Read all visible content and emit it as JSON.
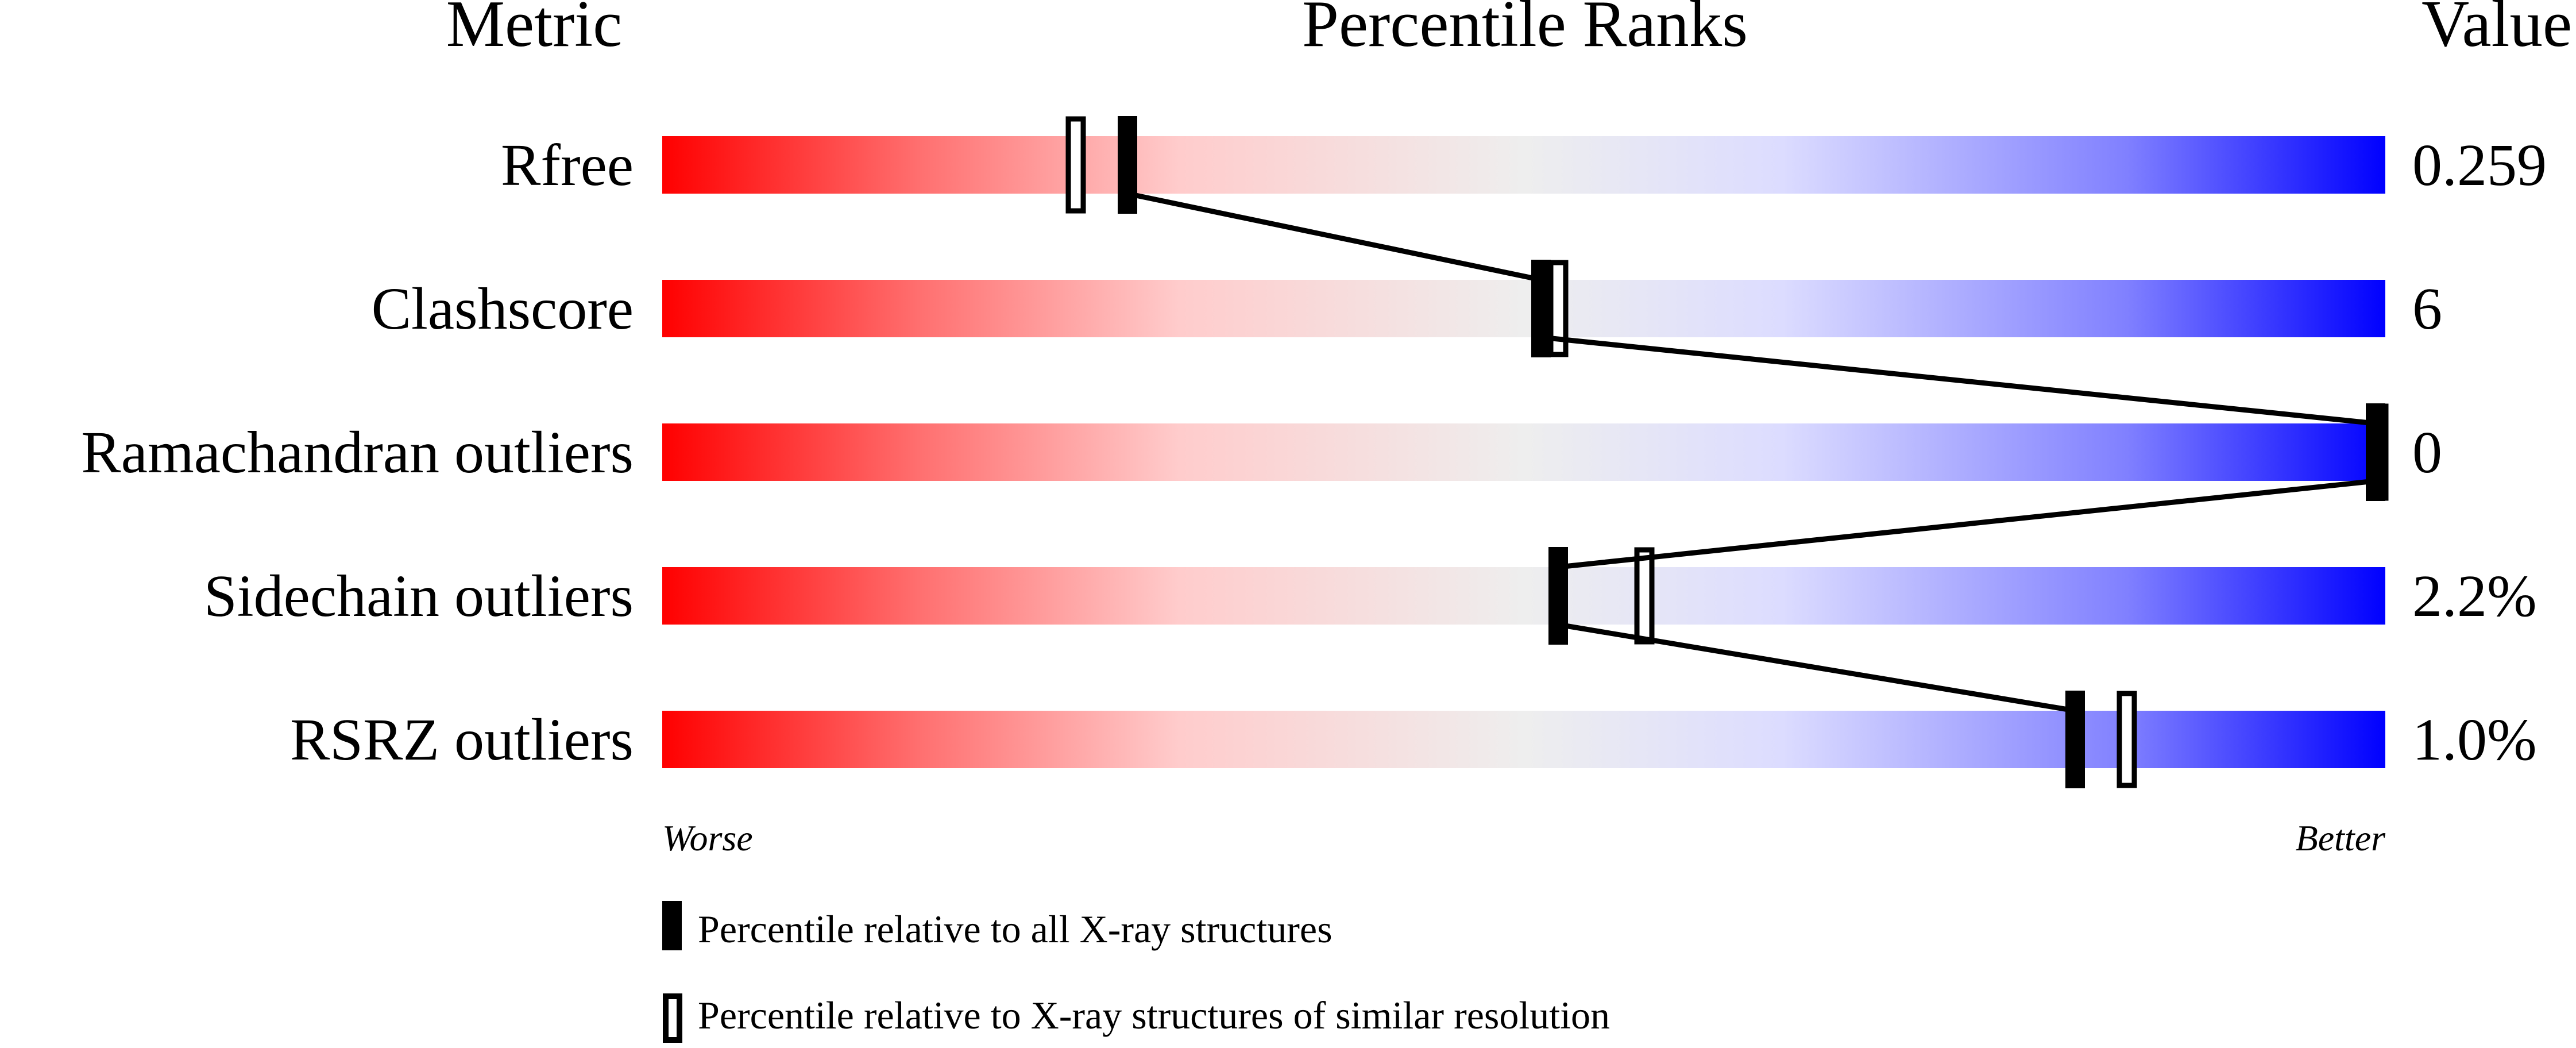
{
  "chart_data": {
    "type": "bar",
    "headers": {
      "metric": "Metric",
      "percentile": "Percentile Ranks",
      "value": "Value"
    },
    "xlim": [
      0,
      100
    ],
    "metrics": [
      {
        "label": "Rfree",
        "value": "0.259",
        "percentile_all": 27,
        "percentile_similar": 24
      },
      {
        "label": "Clashscore",
        "value": "6",
        "percentile_all": 51,
        "percentile_similar": 52
      },
      {
        "label": "Ramachandran outliers",
        "value": "0",
        "percentile_all": 100,
        "percentile_similar": 100
      },
      {
        "label": "Sidechain outliers",
        "value": "2.2%",
        "percentile_all": 52,
        "percentile_similar": 57
      },
      {
        "label": "RSRZ outliers",
        "value": "1.0%",
        "percentile_all": 82,
        "percentile_similar": 85
      }
    ],
    "axis": {
      "worse": "Worse",
      "better": "Better"
    },
    "legend": {
      "filled": "Percentile relative to all X-ray structures",
      "open": "Percentile relative to X-ray structures of similar resolution"
    },
    "colors": {
      "worse": "#ff0000",
      "middle": "#eeeeee",
      "better": "#0000ff"
    }
  }
}
